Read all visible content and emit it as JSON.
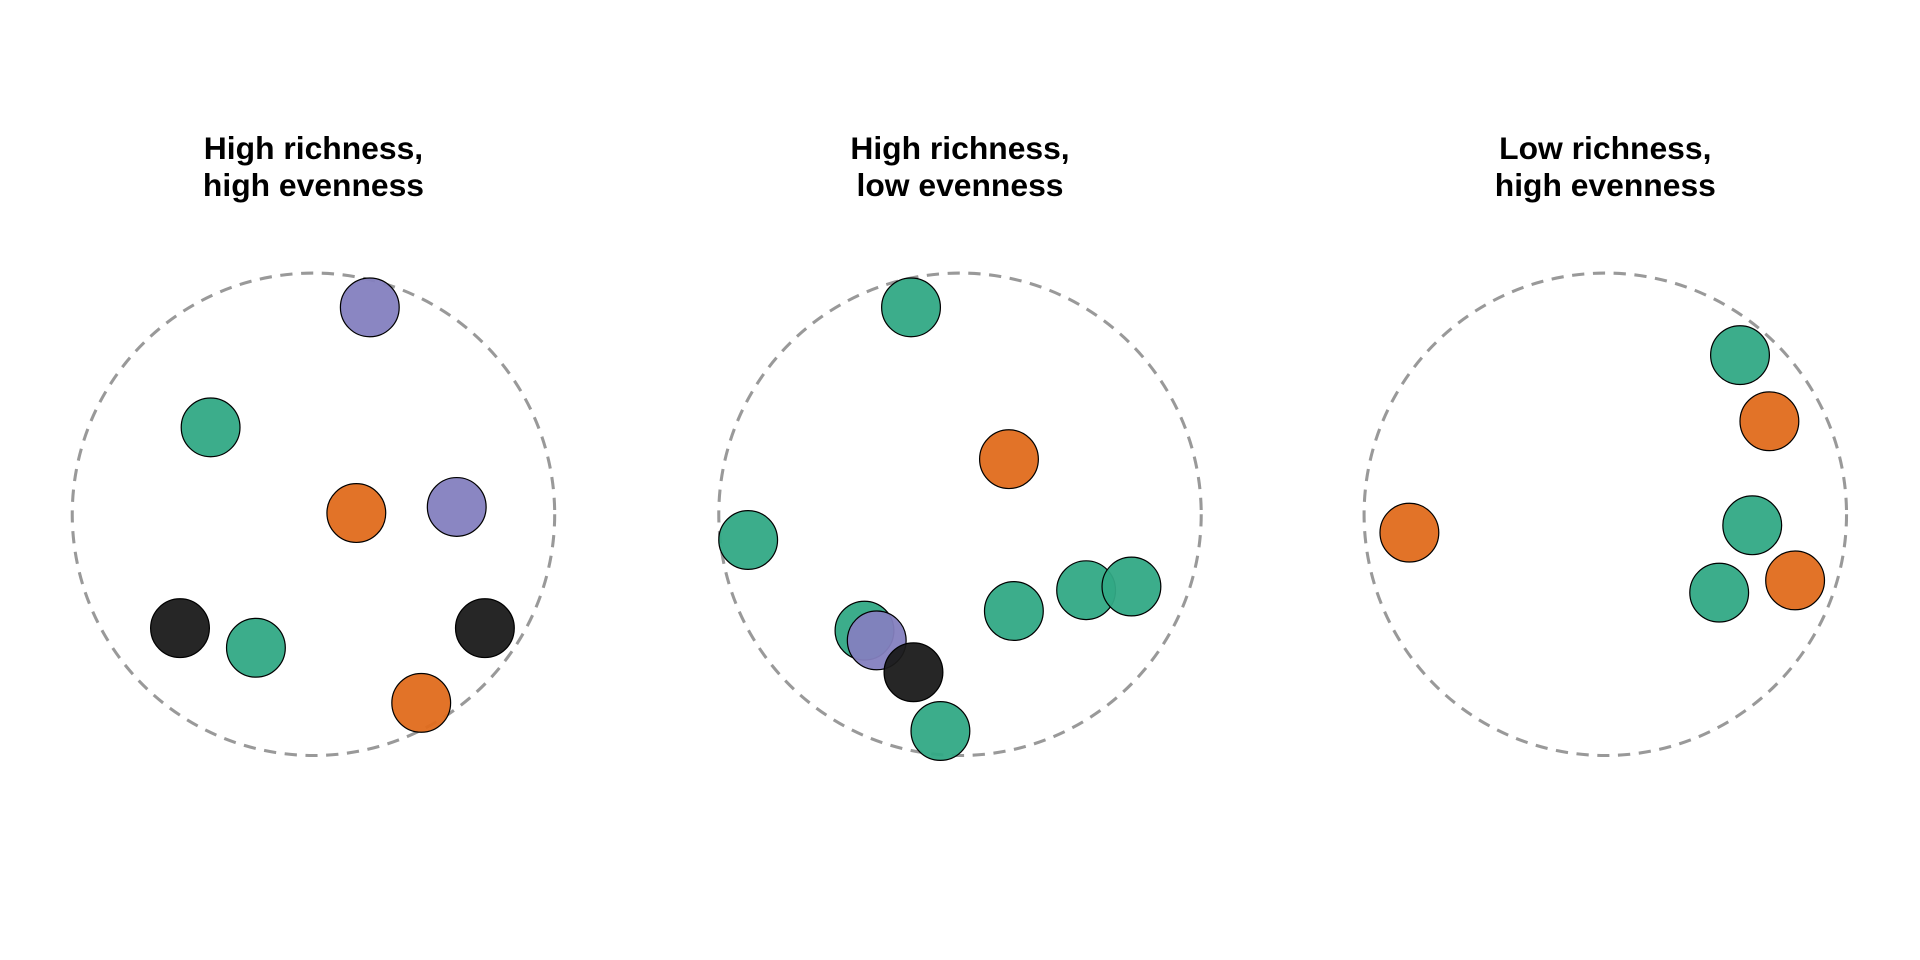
{
  "panels": [
    {
      "title": [
        "High richness,",
        "high evenness"
      ]
    },
    {
      "title": [
        "High richness,",
        "low evenness"
      ]
    },
    {
      "title": [
        "Low richness,",
        "high evenness"
      ]
    }
  ]
}
